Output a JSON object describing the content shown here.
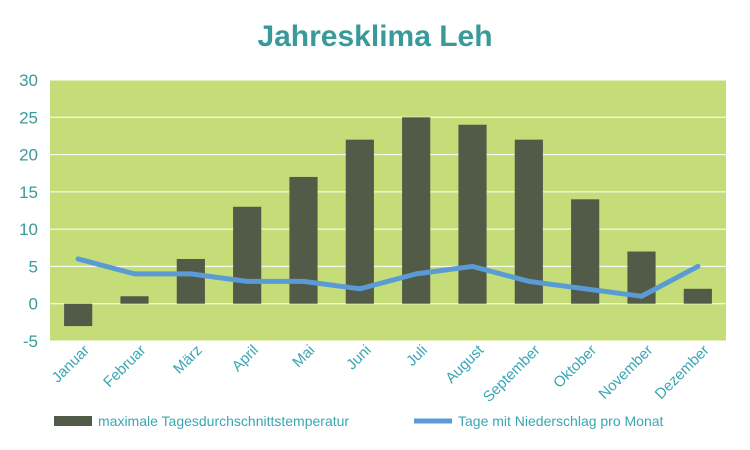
{
  "chart_data": {
    "type": "bar",
    "title": "Jahresklima  Leh",
    "categories": [
      "Januar",
      "Februar",
      "März",
      "April",
      "Mai",
      "Juni",
      "Juli",
      "August",
      "September",
      "Oktober",
      "November",
      "Dezember"
    ],
    "series": [
      {
        "name": "maximale Tagesdurchschnittstemperatur",
        "type": "bar",
        "values": [
          -3,
          1,
          6,
          13,
          17,
          22,
          25,
          24,
          22,
          14,
          7,
          2
        ],
        "color": "#525a48"
      },
      {
        "name": "Tage mit Niederschlag pro Monat",
        "type": "line",
        "values": [
          6,
          4,
          4,
          3,
          3,
          2,
          4,
          5,
          3,
          2,
          1,
          5
        ],
        "color": "#5b9bd5"
      }
    ],
    "ylim": [
      -5,
      30
    ],
    "yticks": [
      "-5",
      "0",
      "5",
      "10",
      "15",
      "20",
      "25",
      "30"
    ],
    "ytick_values": [
      -5,
      0,
      5,
      10,
      15,
      20,
      25,
      30
    ],
    "xlabel": "",
    "ylabel": "",
    "grid": true,
    "legend_position": "bottom",
    "plot_background": "#c5dd78",
    "grid_color": "#ffffff"
  }
}
